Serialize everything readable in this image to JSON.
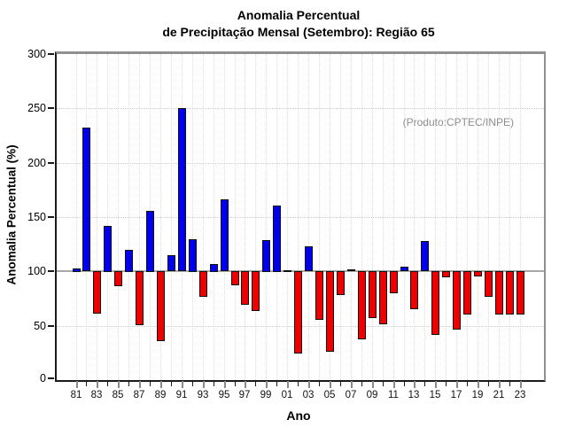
{
  "chart_data": {
    "type": "bar",
    "title_line1": "Anomalia Percentual",
    "title_line2": "de Precipitação Mensal (Setembro): Região 65",
    "xlabel": "Ano",
    "ylabel": "Anomalia Percentual (%)",
    "watermark": "(Produto:CPTEC/INPE)",
    "ylim": [
      0,
      300
    ],
    "yticks": [
      0,
      50,
      100,
      150,
      200,
      250,
      300
    ],
    "baseline": 100,
    "grid": "dotted",
    "legend": "none",
    "colors": {
      "above_baseline": "#0000ee",
      "below_baseline": "#ee0000",
      "baseline_line": "#a8a8a8"
    },
    "categories": [
      "81",
      "82",
      "83",
      "84",
      "85",
      "86",
      "87",
      "88",
      "89",
      "90",
      "91",
      "92",
      "93",
      "94",
      "95",
      "96",
      "97",
      "98",
      "99",
      "00",
      "01",
      "02",
      "03",
      "04",
      "05",
      "06",
      "07",
      "08",
      "09",
      "10",
      "11",
      "12",
      "13",
      "14",
      "15",
      "16",
      "17",
      "18",
      "19",
      "20",
      "21",
      "22",
      "23"
    ],
    "xtick_labeled": [
      "81",
      "83",
      "85",
      "87",
      "89",
      "91",
      "93",
      "95",
      "97",
      "99",
      "01",
      "03",
      "05",
      "07",
      "09",
      "11",
      "13",
      "15",
      "17",
      "19",
      "21",
      "23"
    ],
    "values": [
      103,
      232,
      61,
      142,
      86,
      120,
      50,
      156,
      36,
      115,
      250,
      130,
      76,
      107,
      166,
      87,
      69,
      63,
      129,
      161,
      101,
      24,
      123,
      55,
      26,
      78,
      102,
      37,
      57,
      51,
      80,
      104,
      65,
      128,
      41,
      94,
      46,
      60,
      95,
      76,
      60,
      60,
      60
    ]
  }
}
